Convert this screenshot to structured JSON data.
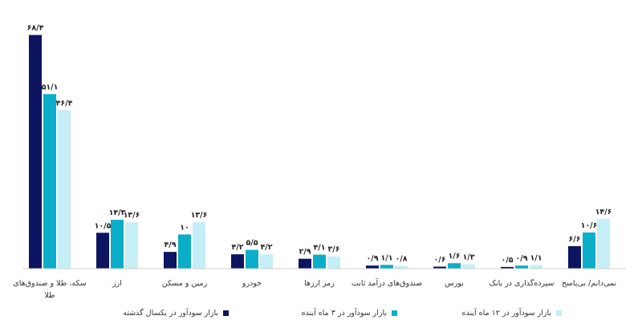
{
  "chart_data": {
    "type": "bar",
    "categories": [
      [
        "سکه، طلا و صندوق‌های",
        "طلا"
      ],
      [
        "ارز"
      ],
      [
        "زمین و مسکن"
      ],
      [
        "خودرو"
      ],
      [
        "رمز ارزها"
      ],
      [
        "صندوق‌های درآمد ثابت"
      ],
      [
        "بورس"
      ],
      [
        "سپرده‌گذاری در بانک"
      ],
      [
        "نمی‌دانم/ بی‌پاسخ"
      ]
    ],
    "series": [
      {
        "name": "بازار سودآور در یکسال گذشته",
        "color": "#0d1460",
        "values": [
          68.4,
          10.5,
          4.9,
          4.2,
          2.9,
          0.9,
          0.6,
          0.5,
          6.6
        ],
        "labels": [
          "۶۸/۴",
          "۱۰/۵",
          "۴/۹",
          "۴/۲",
          "۲/۹",
          "۰/۹",
          "۰/۶",
          "۰/۵",
          "۶/۶"
        ]
      },
      {
        "name": "بازار سودآور در ۳ ماه آینده",
        "color": "#0aaec9",
        "values": [
          51.1,
          14.3,
          10,
          5.5,
          4.1,
          1.1,
          1.6,
          0.9,
          10.6
        ],
        "labels": [
          "۵۱/۱",
          "۱۴/۳",
          "۱۰",
          "۵/۵",
          "۴/۱",
          "۱/۱",
          "۱/۶",
          "۰/۹",
          "۱۰/۶"
        ]
      },
      {
        "name": "بازار سودآور در ۱۲ ماه آینده",
        "color": "#c6eef6",
        "values": [
          46.4,
          13.6,
          13.6,
          4.2,
          3.6,
          0.8,
          1.3,
          1.1,
          14.6
        ],
        "labels": [
          "۴۶/۴",
          "۱۳/۶",
          "۱۳/۶",
          "۴/۲",
          "۳/۶",
          "۰/۸",
          "۱/۳",
          "۱/۱",
          "۱۴/۶"
        ]
      }
    ],
    "ylim": [
      0,
      70
    ],
    "grid": false,
    "legend": "bottom"
  }
}
